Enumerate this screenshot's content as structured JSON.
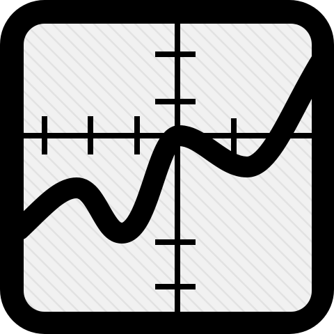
{
  "icon": {
    "name": "function-graph-icon",
    "colors": {
      "stroke": "#000000",
      "panel": "#f1f1f1",
      "hatch": "#e2e2e2",
      "background": "#ffffff"
    }
  }
}
